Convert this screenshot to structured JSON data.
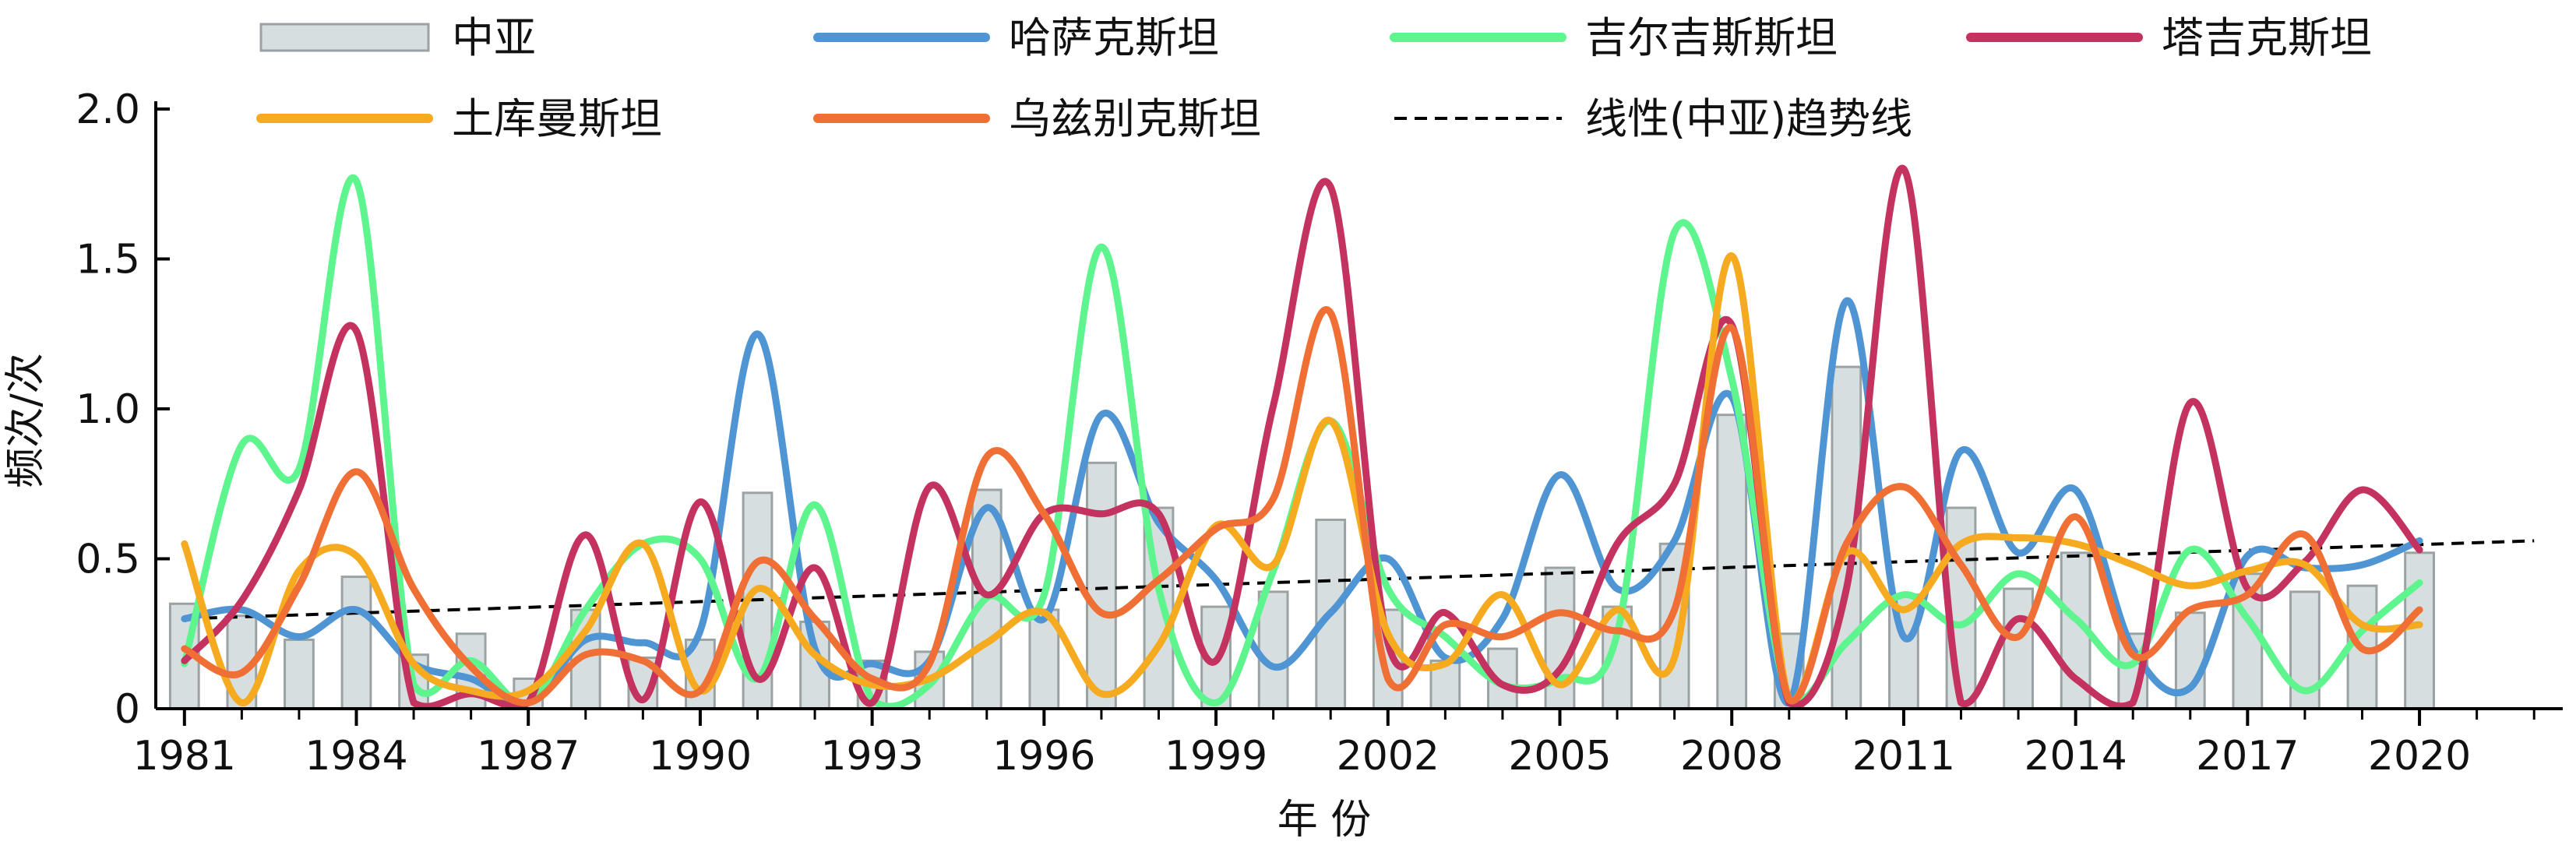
{
  "chart_data": {
    "type": "bar",
    "xlabel": "年 份",
    "ylabel": "频次/次",
    "ylim": [
      0,
      2.0
    ],
    "yticks": [
      {
        "value": 0,
        "label": "0"
      },
      {
        "value": 0.5,
        "label": "0.5"
      },
      {
        "value": 1.0,
        "label": "1.0"
      },
      {
        "value": 1.5,
        "label": "1.5"
      },
      {
        "value": 2.0,
        "label": "2.0"
      }
    ],
    "xlim": [
      1980.5,
      2022.5
    ],
    "xticks": [
      {
        "value": 1981,
        "label": "1981"
      },
      {
        "value": 1984,
        "label": "1984"
      },
      {
        "value": 1987,
        "label": "1987"
      },
      {
        "value": 1990,
        "label": "1990"
      },
      {
        "value": 1993,
        "label": "1993"
      },
      {
        "value": 1996,
        "label": "1996"
      },
      {
        "value": 1999,
        "label": "1999"
      },
      {
        "value": 2002,
        "label": "2002"
      },
      {
        "value": 2005,
        "label": "2005"
      },
      {
        "value": 2008,
        "label": "2008"
      },
      {
        "value": 2011,
        "label": "2011"
      },
      {
        "value": 2014,
        "label": "2014"
      },
      {
        "value": 2017,
        "label": "2017"
      },
      {
        "value": 2020,
        "label": "2020"
      }
    ],
    "years": [
      1981,
      1982,
      1983,
      1984,
      1985,
      1986,
      1987,
      1988,
      1989,
      1990,
      1991,
      1992,
      1993,
      1994,
      1995,
      1996,
      1997,
      1998,
      1999,
      2000,
      2001,
      2002,
      2003,
      2004,
      2005,
      2006,
      2007,
      2008,
      2009,
      2010,
      2011,
      2012,
      2013,
      2014,
      2015,
      2016,
      2017,
      2018,
      2019,
      2020
    ],
    "bar_series": {
      "name": "中亚",
      "color": "#d7dedf",
      "edge_color": "#9aa2a4",
      "values": [
        0.35,
        0.31,
        0.23,
        0.44,
        0.18,
        0.25,
        0.1,
        0.33,
        0.17,
        0.23,
        0.72,
        0.29,
        0.16,
        0.19,
        0.73,
        0.33,
        0.82,
        0.67,
        0.34,
        0.39,
        0.63,
        0.33,
        0.16,
        0.2,
        0.47,
        0.34,
        0.55,
        0.98,
        0.25,
        1.14,
        0.38,
        0.67,
        0.4,
        0.52,
        0.25,
        0.32,
        0.45,
        0.39,
        0.41,
        0.52
      ]
    },
    "line_series": [
      {
        "name": "哈萨克斯坦",
        "color": "#4f95d3",
        "values": [
          0.3,
          0.33,
          0.24,
          0.33,
          0.15,
          0.1,
          0.02,
          0.23,
          0.22,
          0.26,
          1.25,
          0.2,
          0.15,
          0.16,
          0.67,
          0.3,
          0.98,
          0.62,
          0.43,
          0.14,
          0.32,
          0.5,
          0.17,
          0.3,
          0.78,
          0.4,
          0.56,
          1.04,
          0.02,
          1.36,
          0.24,
          0.86,
          0.52,
          0.73,
          0.2,
          0.07,
          0.51,
          0.47,
          0.48,
          0.56
        ]
      },
      {
        "name": "吉尔吉斯斯坦",
        "color": "#5ef58e",
        "values": [
          0.15,
          0.88,
          0.8,
          1.76,
          0.08,
          0.16,
          0.02,
          0.33,
          0.55,
          0.5,
          0.1,
          0.68,
          0.03,
          0.08,
          0.37,
          0.38,
          1.54,
          0.4,
          0.02,
          0.46,
          0.96,
          0.4,
          0.24,
          0.08,
          0.1,
          0.25,
          1.59,
          1.1,
          0.03,
          0.22,
          0.38,
          0.28,
          0.45,
          0.3,
          0.15,
          0.53,
          0.3,
          0.06,
          0.26,
          0.42
        ]
      },
      {
        "name": "塔吉克斯坦",
        "color": "#c43360",
        "values": [
          0.16,
          0.36,
          0.73,
          1.26,
          0.02,
          0.05,
          0.02,
          0.58,
          0.03,
          0.69,
          0.1,
          0.47,
          0.02,
          0.74,
          0.38,
          0.65,
          0.65,
          0.65,
          0.16,
          1.01,
          1.74,
          0.22,
          0.32,
          0.08,
          0.13,
          0.55,
          0.75,
          1.28,
          0.02,
          0.4,
          1.8,
          0.02,
          0.3,
          0.1,
          0.02,
          1.02,
          0.4,
          0.49,
          0.73,
          0.53
        ]
      },
      {
        "name": "土库曼斯坦",
        "color": "#f5aa1f",
        "values": [
          0.55,
          0.02,
          0.46,
          0.51,
          0.15,
          0.06,
          0.06,
          0.26,
          0.55,
          0.06,
          0.4,
          0.18,
          0.08,
          0.1,
          0.22,
          0.32,
          0.05,
          0.21,
          0.61,
          0.48,
          0.96,
          0.25,
          0.15,
          0.38,
          0.08,
          0.33,
          0.17,
          1.51,
          0.03,
          0.52,
          0.33,
          0.55,
          0.57,
          0.55,
          0.48,
          0.41,
          0.46,
          0.48,
          0.28,
          0.28
        ]
      },
      {
        "name": "乌兹别克斯坦",
        "color": "#ef6f35",
        "values": [
          0.2,
          0.12,
          0.41,
          0.79,
          0.4,
          0.14,
          0.02,
          0.18,
          0.16,
          0.06,
          0.49,
          0.3,
          0.1,
          0.15,
          0.84,
          0.65,
          0.32,
          0.43,
          0.6,
          0.7,
          1.32,
          0.1,
          0.28,
          0.24,
          0.32,
          0.26,
          0.33,
          1.27,
          0.03,
          0.55,
          0.74,
          0.48,
          0.24,
          0.64,
          0.18,
          0.33,
          0.38,
          0.58,
          0.2,
          0.33
        ]
      }
    ],
    "trend_line": {
      "name": "线性(中亚)趋势线",
      "color": "#000000",
      "x": [
        1981,
        2022
      ],
      "y": [
        0.3,
        0.56
      ]
    },
    "legend_placement": "top"
  }
}
